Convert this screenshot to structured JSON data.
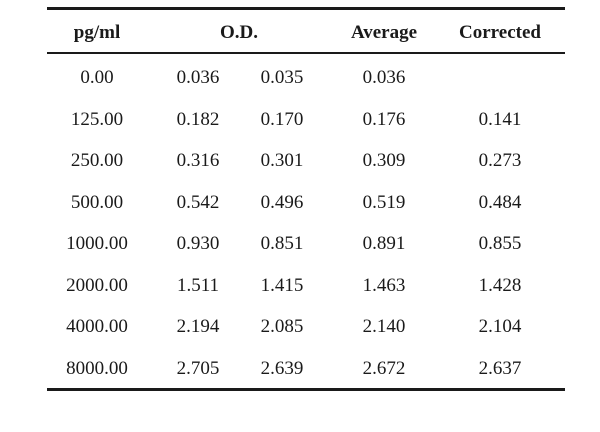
{
  "table": {
    "headers": {
      "pg_ml": "pg/ml",
      "od": "O.D.",
      "average": "Average",
      "corrected": "Corrected"
    },
    "rows": [
      {
        "pg_ml": "0.00",
        "od1": "0.036",
        "od2": "0.035",
        "average": "0.036",
        "corrected": ""
      },
      {
        "pg_ml": "125.00",
        "od1": "0.182",
        "od2": "0.170",
        "average": "0.176",
        "corrected": "0.141"
      },
      {
        "pg_ml": "250.00",
        "od1": "0.316",
        "od2": "0.301",
        "average": "0.309",
        "corrected": "0.273"
      },
      {
        "pg_ml": "500.00",
        "od1": "0.542",
        "od2": "0.496",
        "average": "0.519",
        "corrected": "0.484"
      },
      {
        "pg_ml": "1000.00",
        "od1": "0.930",
        "od2": "0.851",
        "average": "0.891",
        "corrected": "0.855"
      },
      {
        "pg_ml": "2000.00",
        "od1": "1.511",
        "od2": "1.415",
        "average": "1.463",
        "corrected": "1.428"
      },
      {
        "pg_ml": "4000.00",
        "od1": "2.194",
        "od2": "2.085",
        "average": "2.140",
        "corrected": "2.104"
      },
      {
        "pg_ml": "8000.00",
        "od1": "2.705",
        "od2": "2.639",
        "average": "2.672",
        "corrected": "2.637"
      }
    ]
  }
}
